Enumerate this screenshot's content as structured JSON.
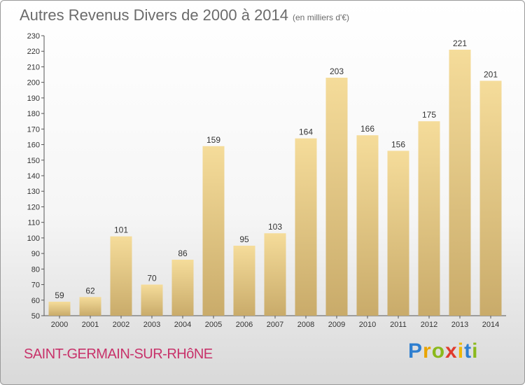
{
  "title": "Autres Revenus Divers de 2000 à 2014",
  "subtitle": "(en milliers d'€)",
  "location": "SAINT-GERMAIN-SUR-RHôNE",
  "logo": "Proxiti",
  "colors": {
    "bar_top": "#f5dc9a",
    "bar_bottom": "#c9ab6a",
    "title": "#6b6b6b",
    "location": "#c8326a"
  },
  "chart_data": {
    "type": "bar",
    "categories": [
      "2000",
      "2001",
      "2002",
      "2003",
      "2004",
      "2005",
      "2006",
      "2007",
      "2008",
      "2009",
      "2010",
      "2011",
      "2012",
      "2013",
      "2014"
    ],
    "values": [
      59,
      62,
      101,
      70,
      86,
      159,
      95,
      103,
      164,
      203,
      166,
      156,
      175,
      221,
      201
    ],
    "ylim": [
      50,
      230
    ],
    "ytick_step": 10,
    "grid": false
  }
}
